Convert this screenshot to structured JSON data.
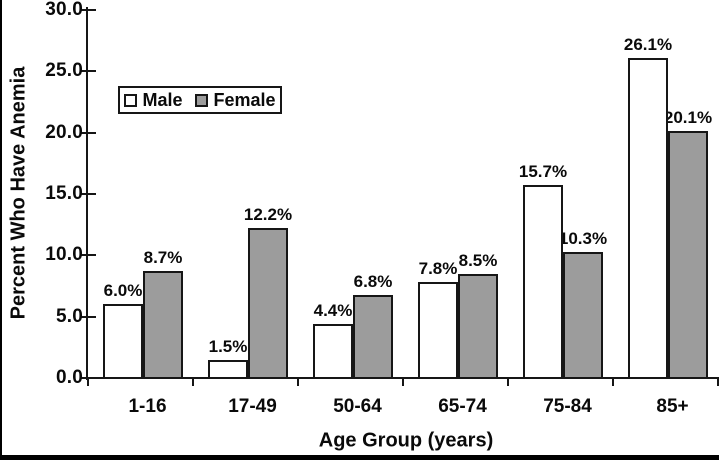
{
  "chart_data": {
    "type": "bar",
    "title": "",
    "xlabel": "Age Group (years)",
    "ylabel": "Percent Who Have Anemia",
    "categories": [
      "1-16",
      "17-49",
      "50-64",
      "65-74",
      "75-84",
      "85+"
    ],
    "series": [
      {
        "name": "Male",
        "color": "#ffffff",
        "values": [
          6.0,
          1.5,
          4.4,
          7.8,
          15.7,
          26.1
        ],
        "labels": [
          "6.0%",
          "1.5%",
          "4.4%",
          "7.8%",
          "15.7%",
          "26.1%"
        ]
      },
      {
        "name": "Female",
        "color": "#9c9c9c",
        "values": [
          8.7,
          12.2,
          6.8,
          8.5,
          10.3,
          20.1
        ],
        "labels": [
          "8.7%",
          "12.2%",
          "6.8%",
          "8.5%",
          "10.3%",
          "20.1%"
        ]
      }
    ],
    "ylim": [
      0,
      30
    ],
    "ytick_step": 5,
    "ytick_labels": [
      "0.0",
      "5.0",
      "10.0",
      "15.0",
      "20.0",
      "25.0",
      "30.0"
    ],
    "grid": false,
    "legend_position": "upper-left-inside"
  },
  "colors": {
    "axis": "#161616",
    "text": "#0a0a0a",
    "male_fill": "#ffffff",
    "female_fill": "#9c9c9c",
    "background": "#ffffff",
    "scan_border": "#000000"
  }
}
